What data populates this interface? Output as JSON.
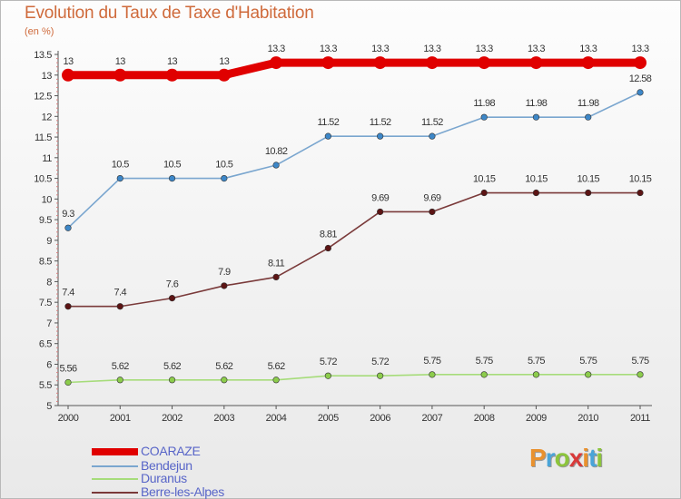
{
  "title": "Evolution du Taux de Taxe d'Habitation",
  "subtitle": "(en %)",
  "logo": {
    "letters": [
      "P",
      "r",
      "o",
      "x",
      "i",
      "t",
      "i"
    ],
    "colors": [
      "#e9912e",
      "#4aa4d8",
      "#8cc43c",
      "#d83a3a",
      "#e9912e",
      "#4aa4d8",
      "#8cc43c"
    ]
  },
  "chart_data": {
    "type": "line",
    "x": [
      "2000",
      "2001",
      "2002",
      "2003",
      "2004",
      "2005",
      "2006",
      "2007",
      "2008",
      "2009",
      "2010",
      "2011"
    ],
    "ylim": [
      5,
      13.5
    ],
    "yticks": [
      "5",
      "5.5",
      "6",
      "6.5",
      "7",
      "7.5",
      "8",
      "8.5",
      "9",
      "9.5",
      "10",
      "10.5",
      "11",
      "11.5",
      "12",
      "12.5",
      "13",
      "13.5"
    ],
    "grid": false,
    "legend_position": "bottom-left",
    "series": [
      {
        "name": "COARAZE",
        "color": "#e00000",
        "bold": true,
        "values": [
          13,
          13,
          13,
          13,
          13.3,
          13.3,
          13.3,
          13.3,
          13.3,
          13.3,
          13.3,
          13.3
        ],
        "labels": [
          "13",
          "13",
          "13",
          "13",
          "13.3",
          "13.3",
          "13.3",
          "13.3",
          "13.3",
          "13.3",
          "13.3",
          "13.3"
        ]
      },
      {
        "name": "Bendejun",
        "color": "#7aa6cf",
        "marker": "#3d87c8",
        "values": [
          9.3,
          10.5,
          10.5,
          10.5,
          10.82,
          11.52,
          11.52,
          11.52,
          11.98,
          11.98,
          11.98,
          12.58
        ],
        "labels": [
          "9.3",
          "10.5",
          "10.5",
          "10.5",
          "10.82",
          "11.52",
          "11.52",
          "11.52",
          "11.98",
          "11.98",
          "11.98",
          "12.58"
        ]
      },
      {
        "name": "Duranus",
        "color": "#a6dc7a",
        "marker": "#8ccc4c",
        "values": [
          5.56,
          5.62,
          5.62,
          5.62,
          5.62,
          5.72,
          5.72,
          5.75,
          5.75,
          5.75,
          5.75,
          5.75
        ],
        "labels": [
          "5.56",
          "5.62",
          "5.62",
          "5.62",
          "5.62",
          "5.72",
          "5.72",
          "5.75",
          "5.75",
          "5.75",
          "5.75",
          "5.75"
        ]
      },
      {
        "name": "Berre-les-Alpes",
        "color": "#7a3a3a",
        "marker": "#5c1414",
        "values": [
          7.4,
          7.4,
          7.6,
          7.9,
          8.11,
          8.81,
          9.69,
          9.69,
          10.15,
          10.15,
          10.15,
          10.15
        ],
        "labels": [
          "7.4",
          "7.4",
          "7.6",
          "7.9",
          "8.11",
          "8.81",
          "9.69",
          "9.69",
          "10.15",
          "10.15",
          "10.15",
          "10.15"
        ]
      }
    ]
  }
}
